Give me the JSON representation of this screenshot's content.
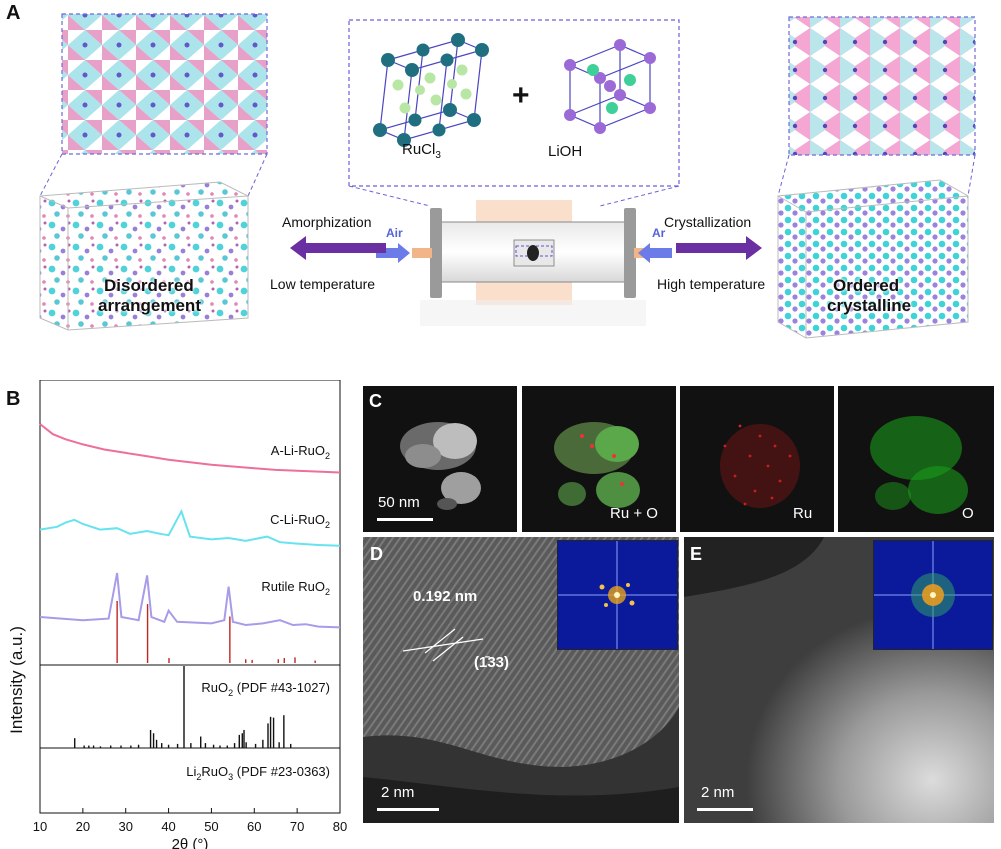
{
  "panels": {
    "a": "A",
    "b": "B",
    "c": "C",
    "d": "D",
    "e": "E"
  },
  "panel_a": {
    "reactant_1": "RuCl",
    "reactant_1_sub": "3",
    "plus": "+",
    "reactant_2": "LiOH",
    "left_process": "Amorphization",
    "left_condition": "Low temperature",
    "left_gas": "Air",
    "right_process": "Crystallization",
    "right_condition": "High temperature",
    "right_gas": "Ar",
    "left_box_label_1": "Disordered",
    "left_box_label_2": "arrangement",
    "right_box_label_1": "Ordered",
    "right_box_label_2": "crystalline",
    "colors": {
      "arrow": "#6a2fa0",
      "gas_arrow": "#6b7be8",
      "furnace_glow": "#f6c9a8"
    }
  },
  "panel_b": {
    "ylabel": "Intensity (a.u.)",
    "xlabel": "2θ (°)",
    "traces": [
      {
        "name": "A-Li-RuO",
        "sub": "2",
        "color": "#ee6f9a"
      },
      {
        "name": "C-Li-RuO",
        "sub": "2",
        "color": "#66e3ee"
      },
      {
        "name": "Rutile RuO",
        "sub": "2",
        "color": "#a89be8"
      }
    ],
    "references": [
      {
        "name": "RuO",
        "sub": "2",
        "suffix": " (PDF #43-1027)",
        "color": "#c0271f"
      },
      {
        "name": "Li",
        "sub": "2",
        "name2": "RuO",
        "sub2": "3",
        "suffix": " (PDF #23-0363)",
        "color": "#111111"
      }
    ]
  },
  "chart_data": {
    "type": "line",
    "xlabel": "2θ (°)",
    "ylabel": "Intensity (a.u.)",
    "xlim": [
      10,
      80
    ],
    "xticks": [
      10,
      20,
      30,
      40,
      50,
      60,
      70,
      80
    ],
    "series": [
      {
        "name": "A-Li-RuO2",
        "x": [
          10,
          13,
          16,
          20,
          25,
          30,
          35,
          40,
          45,
          50,
          55,
          60,
          65,
          70,
          75,
          80
        ],
        "y": [
          1.0,
          0.88,
          0.82,
          0.76,
          0.7,
          0.66,
          0.62,
          0.58,
          0.55,
          0.52,
          0.5,
          0.48,
          0.46,
          0.45,
          0.44,
          0.43
        ]
      },
      {
        "name": "C-Li-RuO2",
        "x": [
          10,
          14,
          16,
          18,
          20,
          24,
          28,
          31,
          35,
          38,
          40,
          43,
          45,
          50,
          54,
          58,
          63,
          66,
          70,
          75,
          80
        ],
        "y": [
          0.62,
          0.66,
          0.72,
          0.76,
          0.7,
          0.62,
          0.64,
          0.56,
          0.6,
          0.56,
          0.54,
          0.88,
          0.52,
          0.48,
          0.5,
          0.46,
          0.52,
          0.44,
          0.42,
          0.4,
          0.39
        ]
      },
      {
        "name": "Rutile RuO2",
        "x": [
          10,
          20,
          26,
          28,
          29,
          33,
          35,
          36,
          39,
          40,
          42,
          50,
          53,
          54,
          55,
          58,
          62,
          66,
          69,
          72,
          75,
          80
        ],
        "y": [
          0.5,
          0.46,
          0.48,
          1.05,
          0.5,
          0.46,
          1.02,
          0.5,
          0.44,
          0.58,
          0.44,
          0.42,
          0.46,
          0.88,
          0.44,
          0.4,
          0.42,
          0.46,
          0.4,
          0.41,
          0.38,
          0.37
        ]
      }
    ],
    "stick_patterns": [
      {
        "name": "RuO2 (PDF #43-1027)",
        "x": [
          28.0,
          35.1,
          40.1,
          54.3,
          58.0,
          59.5,
          65.6,
          67.0,
          69.5,
          74.2
        ],
        "y": [
          100,
          95,
          8,
          75,
          6,
          5,
          6,
          8,
          9,
          4
        ]
      },
      {
        "name": "Li2RuO3 (PDF #23-0363)",
        "x": [
          18.1,
          20.3,
          21.4,
          22.5,
          24.1,
          26.5,
          28.9,
          31.2,
          33.0,
          35.8,
          36.5,
          37.2,
          38.4,
          40.0,
          42.1,
          43.6,
          45.2,
          47.5,
          48.6,
          50.5,
          52.0,
          53.7,
          55.4,
          56.5,
          57.2,
          57.6,
          58.1,
          60.3,
          62.0,
          63.2,
          63.8,
          64.5,
          65.8,
          66.9,
          68.5
        ],
        "y": [
          12,
          3,
          3,
          3,
          2,
          3,
          3,
          3,
          4,
          22,
          18,
          10,
          6,
          4,
          5,
          100,
          6,
          14,
          6,
          4,
          3,
          3,
          6,
          16,
          18,
          22,
          7,
          5,
          10,
          30,
          38,
          37,
          7,
          40,
          5
        ]
      }
    ]
  },
  "panel_c": {
    "scale": "50 nm",
    "labels": [
      "Ru + O",
      "Ru",
      "O"
    ]
  },
  "panel_d": {
    "d_spacing": "0.192 nm",
    "plane": "(1̄33)",
    "scale": "2 nm"
  },
  "panel_e": {
    "scale": "2 nm"
  }
}
